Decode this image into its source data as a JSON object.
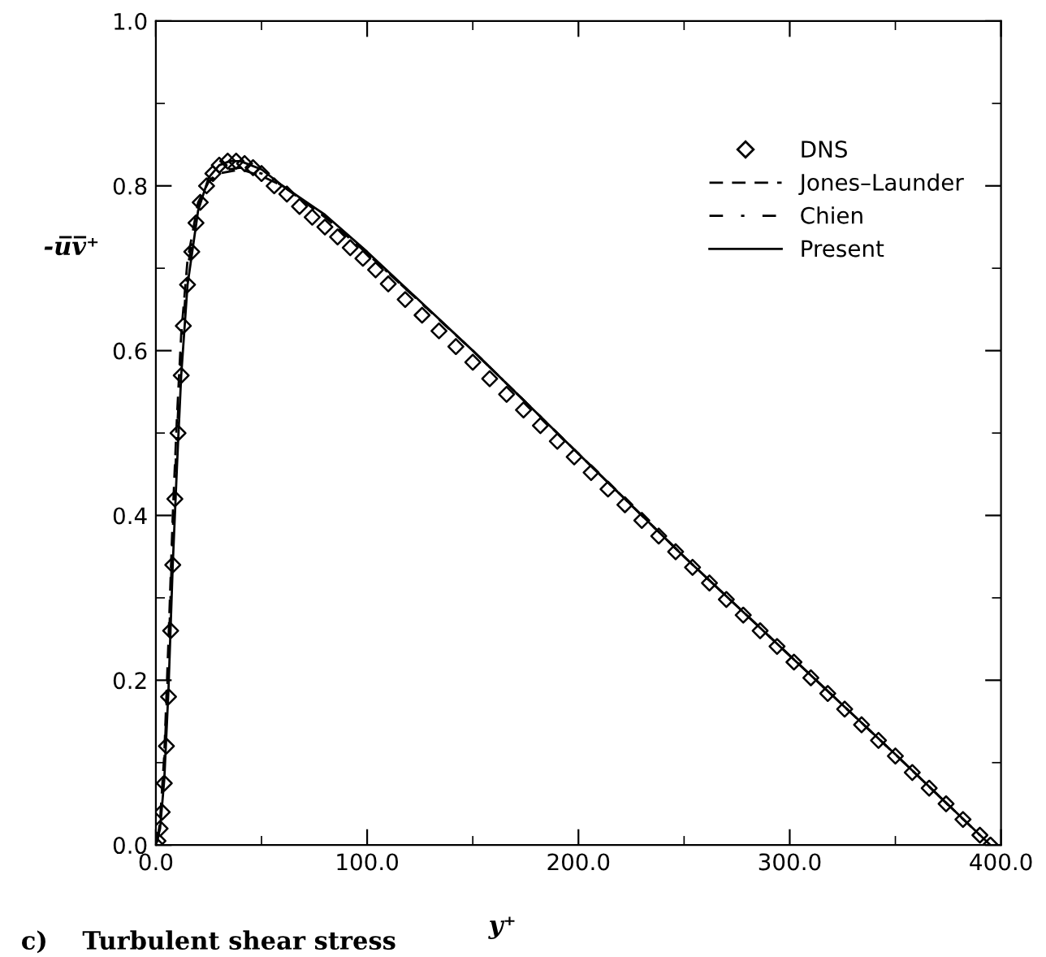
{
  "chart_data": {
    "type": "line",
    "xlabel": "y⁺",
    "ylabel": "-u̅v̅⁺",
    "annotations": [
      "c)    Turbulent shear stress"
    ],
    "xlim": [
      0,
      400
    ],
    "ylim": [
      0,
      1.0
    ],
    "xticks": [
      {
        "value": 0,
        "label": "0.0"
      },
      {
        "value": 100,
        "label": "100.0"
      },
      {
        "value": 200,
        "label": "200.0"
      },
      {
        "value": 300,
        "label": "300.0"
      },
      {
        "value": 400,
        "label": "400.0"
      }
    ],
    "yticks": [
      {
        "value": 0,
        "label": "0.0"
      },
      {
        "value": 0.2,
        "label": "0.2"
      },
      {
        "value": 0.4,
        "label": "0.4"
      },
      {
        "value": 0.6,
        "label": "0.6"
      },
      {
        "value": 0.8,
        "label": "0.8"
      },
      {
        "value": 1.0,
        "label": "1.0"
      }
    ],
    "grid": false,
    "legend": "top right",
    "series": [
      {
        "name": "DNS",
        "type": "scatter",
        "marker": "diamond",
        "color": "#000000",
        "x": [
          0,
          1,
          2,
          3,
          4,
          5,
          6,
          7,
          8,
          9,
          10.5,
          12,
          13,
          15,
          17,
          19,
          21,
          24,
          27,
          30,
          34,
          38,
          42,
          46,
          50,
          56,
          62,
          68,
          74,
          80,
          86,
          92,
          98,
          104,
          110,
          118,
          126,
          134,
          142,
          150,
          158,
          166,
          174,
          182,
          190,
          198,
          206,
          214,
          222,
          230,
          238,
          246,
          254,
          262,
          270,
          278,
          286,
          294,
          302,
          310,
          318,
          326,
          334,
          342,
          350,
          358,
          366,
          374,
          382,
          390,
          395
        ],
        "values": [
          0,
          0.005,
          0.02,
          0.04,
          0.075,
          0.12,
          0.18,
          0.26,
          0.34,
          0.42,
          0.5,
          0.57,
          0.63,
          0.68,
          0.72,
          0.755,
          0.78,
          0.8,
          0.815,
          0.825,
          0.83,
          0.83,
          0.827,
          0.822,
          0.815,
          0.8,
          0.79,
          0.775,
          0.762,
          0.75,
          0.738,
          0.725,
          0.712,
          0.698,
          0.681,
          0.662,
          0.643,
          0.624,
          0.605,
          0.586,
          0.566,
          0.547,
          0.528,
          0.509,
          0.49,
          0.471,
          0.452,
          0.432,
          0.413,
          0.394,
          0.375,
          0.356,
          0.337,
          0.318,
          0.298,
          0.279,
          0.26,
          0.241,
          0.222,
          0.203,
          0.184,
          0.165,
          0.146,
          0.127,
          0.108,
          0.088,
          0.069,
          0.05,
          0.031,
          0.012,
          0.0
        ]
      },
      {
        "name": "Jones–Launder",
        "line_style": "dashed",
        "color": "#000000",
        "x": [
          1,
          2,
          4,
          6,
          8,
          10,
          12,
          15,
          20,
          25,
          30,
          40,
          50,
          60,
          80,
          100,
          150,
          200,
          250,
          300,
          350,
          390
        ],
        "values": [
          0.008,
          0.03,
          0.11,
          0.25,
          0.4,
          0.52,
          0.62,
          0.71,
          0.78,
          0.805,
          0.815,
          0.82,
          0.812,
          0.8,
          0.762,
          0.718,
          0.6,
          0.475,
          0.35,
          0.23,
          0.11,
          0.012
        ]
      },
      {
        "name": "Chien",
        "line_style": "dashdot",
        "color": "#000000",
        "x": [
          0.5,
          2,
          4,
          6,
          8,
          10,
          12,
          15,
          20,
          25,
          30,
          40,
          50,
          60,
          80,
          100,
          150,
          200,
          250,
          300,
          350,
          385
        ],
        "values": [
          0.003,
          0.025,
          0.1,
          0.23,
          0.38,
          0.5,
          0.6,
          0.7,
          0.775,
          0.805,
          0.818,
          0.822,
          0.815,
          0.8,
          0.763,
          0.718,
          0.6,
          0.475,
          0.35,
          0.23,
          0.11,
          0.024
        ]
      },
      {
        "name": "Present",
        "line_style": "solid",
        "color": "#000000",
        "x": [
          0,
          2,
          4,
          6,
          8,
          10,
          12,
          15,
          20,
          25,
          30,
          35,
          40,
          50,
          60,
          80,
          100,
          150,
          200,
          250,
          300,
          350,
          395
        ],
        "values": [
          0,
          0.02,
          0.08,
          0.19,
          0.34,
          0.46,
          0.57,
          0.68,
          0.77,
          0.81,
          0.825,
          0.83,
          0.83,
          0.82,
          0.8,
          0.765,
          0.72,
          0.6,
          0.475,
          0.35,
          0.23,
          0.11,
          0
        ]
      }
    ]
  }
}
